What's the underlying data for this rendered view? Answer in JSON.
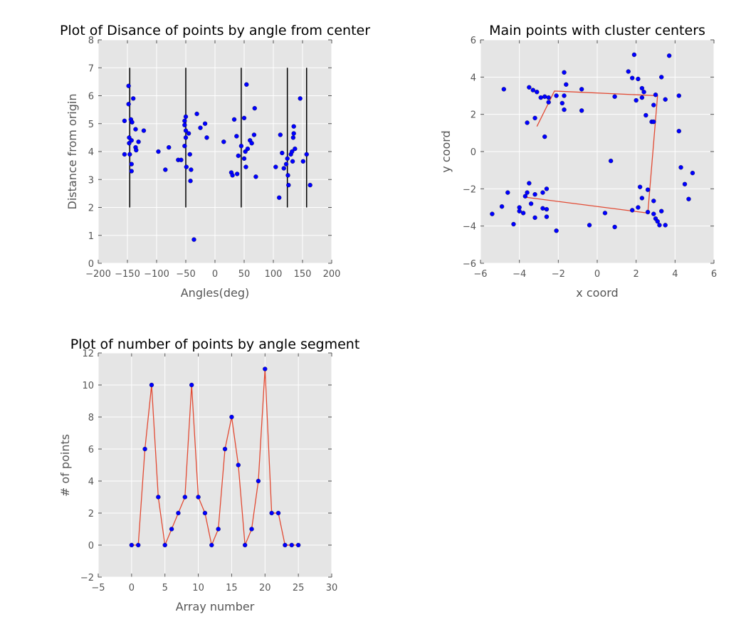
{
  "chart_data": [
    {
      "type": "scatter",
      "title": "Plot of Disance of points by angle from center",
      "xlabel": "Angles(deg)",
      "ylabel": "Distance from origin",
      "xlim": [
        -200,
        200
      ],
      "ylim": [
        0,
        8
      ],
      "xticks": [
        -200,
        -150,
        -100,
        -50,
        0,
        50,
        100,
        150,
        200
      ],
      "yticks": [
        0,
        1,
        2,
        3,
        4,
        5,
        6,
        7,
        8
      ],
      "grid": true,
      "points": [
        [
          -155,
          5.1
        ],
        [
          -155,
          3.9
        ],
        [
          -148,
          6.35
        ],
        [
          -148,
          5.7
        ],
        [
          -147,
          4.5
        ],
        [
          -147,
          4.3
        ],
        [
          -146,
          3.9
        ],
        [
          -144,
          5.15
        ],
        [
          -143,
          4.4
        ],
        [
          -143,
          3.55
        ],
        [
          -143,
          3.3
        ],
        [
          -142,
          5.05
        ],
        [
          -140,
          5.9
        ],
        [
          -136,
          4.8
        ],
        [
          -136,
          4.15
        ],
        [
          -135,
          4.05
        ],
        [
          -131,
          4.35
        ],
        [
          -122,
          4.75
        ],
        [
          -97,
          4.0
        ],
        [
          -85,
          3.35
        ],
        [
          -79,
          4.15
        ],
        [
          -63,
          3.7
        ],
        [
          -58,
          3.7
        ],
        [
          -52,
          5.1
        ],
        [
          -52,
          4.95
        ],
        [
          -52,
          4.2
        ],
        [
          -50,
          5.25
        ],
        [
          -50,
          4.75
        ],
        [
          -50,
          4.5
        ],
        [
          -49,
          3.45
        ],
        [
          -45,
          4.65
        ],
        [
          -43,
          3.9
        ],
        [
          -42,
          2.95
        ],
        [
          -41,
          3.35
        ],
        [
          -36,
          0.85
        ],
        [
          -31,
          5.35
        ],
        [
          -25,
          4.85
        ],
        [
          -17,
          5.0
        ],
        [
          -14,
          4.5
        ],
        [
          15,
          4.35
        ],
        [
          28,
          3.25
        ],
        [
          30,
          3.15
        ],
        [
          33,
          5.15
        ],
        [
          37,
          4.55
        ],
        [
          38,
          3.2
        ],
        [
          40,
          3.85
        ],
        [
          45,
          4.2
        ],
        [
          50,
          5.2
        ],
        [
          50,
          3.75
        ],
        [
          52,
          4.0
        ],
        [
          53,
          3.45
        ],
        [
          54,
          6.4
        ],
        [
          56,
          4.1
        ],
        [
          60,
          4.4
        ],
        [
          63,
          4.3
        ],
        [
          67,
          4.6
        ],
        [
          68,
          5.55
        ],
        [
          70,
          3.1
        ],
        [
          104,
          3.45
        ],
        [
          110,
          2.35
        ],
        [
          112,
          4.6
        ],
        [
          115,
          3.95
        ],
        [
          118,
          3.4
        ],
        [
          122,
          3.55
        ],
        [
          124,
          3.75
        ],
        [
          125,
          3.15
        ],
        [
          126,
          2.8
        ],
        [
          130,
          3.9
        ],
        [
          132,
          4.0
        ],
        [
          133,
          3.65
        ],
        [
          134,
          4.5
        ],
        [
          135,
          4.65
        ],
        [
          135,
          4.9
        ],
        [
          137,
          4.1
        ],
        [
          146,
          5.9
        ],
        [
          151,
          3.65
        ],
        [
          157,
          3.9
        ],
        [
          163,
          2.8
        ]
      ],
      "vlines": [
        {
          "x": -146,
          "ymin": 2,
          "ymax": 7
        },
        {
          "x": -50,
          "ymin": 2,
          "ymax": 7
        },
        {
          "x": 45,
          "ymin": 2,
          "ymax": 7
        },
        {
          "x": 124,
          "ymin": 2,
          "ymax": 7
        },
        {
          "x": 157,
          "ymin": 2,
          "ymax": 7
        }
      ]
    },
    {
      "type": "scatter",
      "title": "Main points with cluster centers",
      "xlabel": "x coord",
      "ylabel": "y coord",
      "xlim": [
        -6,
        6
      ],
      "ylim": [
        -6,
        6
      ],
      "xticks": [
        -6,
        -4,
        -2,
        0,
        2,
        4,
        6
      ],
      "yticks": [
        -6,
        -4,
        -2,
        0,
        2,
        4,
        6
      ],
      "grid": true,
      "points": [
        [
          -4.8,
          3.35
        ],
        [
          -3.5,
          3.45
        ],
        [
          -3.3,
          3.3
        ],
        [
          -3.1,
          3.2
        ],
        [
          -2.9,
          2.9
        ],
        [
          -2.7,
          2.95
        ],
        [
          -2.5,
          2.9
        ],
        [
          -2.5,
          2.65
        ],
        [
          -2.1,
          3.0
        ],
        [
          -3.2,
          1.8
        ],
        [
          -3.6,
          1.55
        ],
        [
          -2.7,
          0.8
        ],
        [
          -1.8,
          2.6
        ],
        [
          -1.7,
          2.25
        ],
        [
          -1.7,
          3.0
        ],
        [
          -1.6,
          3.6
        ],
        [
          -1.7,
          4.25
        ],
        [
          -0.8,
          3.35
        ],
        [
          -0.8,
          2.2
        ],
        [
          0.9,
          2.95
        ],
        [
          0.7,
          -0.5
        ],
        [
          1.6,
          4.3
        ],
        [
          1.8,
          3.95
        ],
        [
          1.9,
          5.2
        ],
        [
          2.1,
          3.9
        ],
        [
          2.3,
          3.4
        ],
        [
          2.4,
          3.2
        ],
        [
          2.3,
          2.9
        ],
        [
          2.0,
          2.75
        ],
        [
          2.5,
          1.95
        ],
        [
          2.8,
          1.6
        ],
        [
          2.9,
          1.6
        ],
        [
          2.9,
          2.5
        ],
        [
          3.0,
          3.05
        ],
        [
          3.3,
          4.0
        ],
        [
          3.5,
          2.8
        ],
        [
          3.7,
          5.15
        ],
        [
          4.2,
          3.0
        ],
        [
          4.2,
          1.1
        ],
        [
          -5.4,
          -3.35
        ],
        [
          -4.9,
          -2.95
        ],
        [
          -4.6,
          -2.2
        ],
        [
          -4.3,
          -3.9
        ],
        [
          -4.0,
          -3.0
        ],
        [
          -4.0,
          -3.2
        ],
        [
          -3.8,
          -3.3
        ],
        [
          -3.7,
          -2.4
        ],
        [
          -3.6,
          -2.2
        ],
        [
          -3.5,
          -1.7
        ],
        [
          -3.4,
          -2.8
        ],
        [
          -3.2,
          -3.55
        ],
        [
          -3.2,
          -2.3
        ],
        [
          -2.8,
          -3.05
        ],
        [
          -2.8,
          -2.2
        ],
        [
          -2.6,
          -2.0
        ],
        [
          -2.6,
          -3.1
        ],
        [
          -2.6,
          -3.5
        ],
        [
          -2.1,
          -4.25
        ],
        [
          -0.4,
          -3.95
        ],
        [
          0.4,
          -3.3
        ],
        [
          0.9,
          -4.05
        ],
        [
          1.8,
          -3.15
        ],
        [
          2.1,
          -3.0
        ],
        [
          2.2,
          -1.9
        ],
        [
          2.3,
          -2.5
        ],
        [
          2.6,
          -2.05
        ],
        [
          2.6,
          -3.25
        ],
        [
          2.9,
          -2.65
        ],
        [
          2.9,
          -3.35
        ],
        [
          3.0,
          -3.6
        ],
        [
          3.1,
          -3.75
        ],
        [
          3.2,
          -3.95
        ],
        [
          3.3,
          -3.2
        ],
        [
          3.5,
          -3.95
        ],
        [
          4.3,
          -0.85
        ],
        [
          4.5,
          -1.75
        ],
        [
          4.7,
          -2.55
        ],
        [
          4.9,
          -1.15
        ]
      ],
      "center_path": [
        [
          -3.1,
          1.35
        ],
        [
          -2.2,
          3.25
        ],
        [
          3.1,
          3.0
        ],
        [
          2.6,
          -3.3
        ],
        [
          -3.7,
          -2.45
        ]
      ]
    },
    {
      "type": "line",
      "title": "Plot of number of points by angle segment",
      "xlabel": "Array number",
      "ylabel": "# of points",
      "xlim": [
        -5,
        30
      ],
      "ylim": [
        -2,
        12
      ],
      "xticks": [
        -5,
        0,
        5,
        10,
        15,
        20,
        25,
        30
      ],
      "yticks": [
        -2,
        0,
        2,
        4,
        6,
        8,
        10,
        12
      ],
      "grid": true,
      "x": [
        0,
        1,
        2,
        3,
        4,
        5,
        6,
        7,
        8,
        9,
        10,
        11,
        12,
        13,
        14,
        15,
        16,
        17,
        18,
        19,
        20,
        21,
        22,
        23,
        24,
        25
      ],
      "values": [
        0,
        0,
        6,
        10,
        3,
        0,
        1,
        2,
        3,
        10,
        3,
        2,
        0,
        1,
        6,
        8,
        5,
        0,
        1,
        4,
        11,
        2,
        2,
        0,
        0,
        0
      ]
    }
  ],
  "colors": {
    "axes_bg": "#e5e5e5",
    "grid": "#ffffff",
    "points": "#0000ff",
    "line": "#e24a33",
    "vline": "#000000",
    "text": "#555555"
  }
}
